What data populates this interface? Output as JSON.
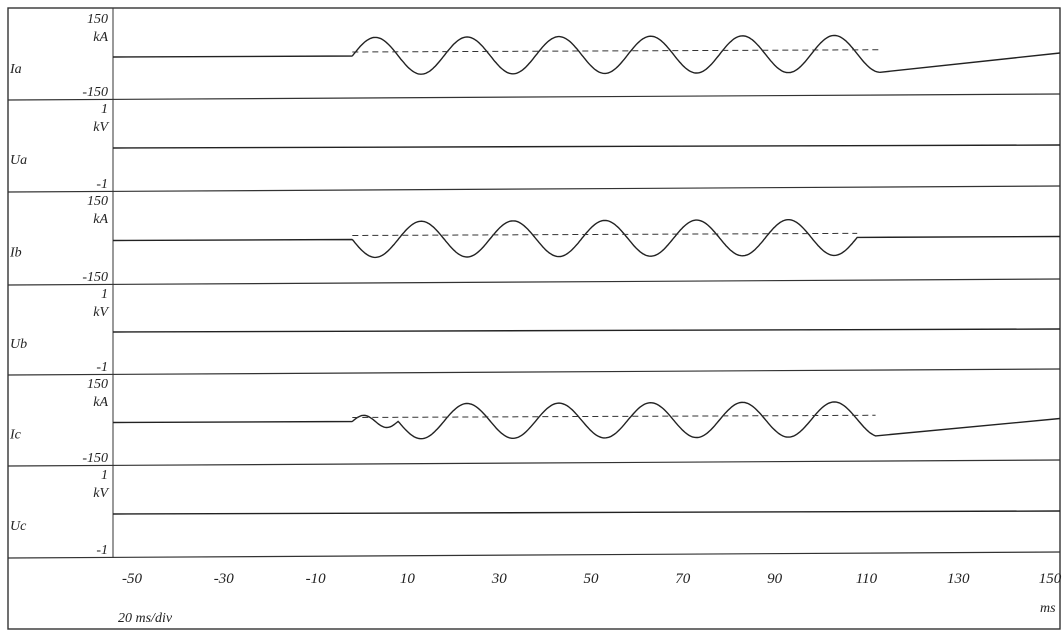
{
  "chart_data": {
    "type": "line",
    "title": "",
    "time_unit": "ms",
    "time_scale": "20 ms/div",
    "x_ticks": [
      "-50",
      "-30",
      "-10",
      "10",
      "30",
      "50",
      "70",
      "90",
      "110",
      "130",
      "150"
    ],
    "xlim": [
      -50,
      150
    ],
    "grid": false,
    "channels": [
      {
        "name": "Ia",
        "unit": "kA",
        "max_label": "150",
        "min_label": "-150",
        "range": [
          -150,
          150
        ],
        "waveform": {
          "start_ms": -2,
          "end_ms": 113,
          "amplitude_kA": 75,
          "period_ms": 20,
          "initial_direction": "up"
        }
      },
      {
        "name": "Ua",
        "unit": "kV",
        "max_label": "1",
        "min_label": "-1",
        "range": [
          -1,
          1
        ],
        "waveform": null
      },
      {
        "name": "Ib",
        "unit": "kA",
        "max_label": "150",
        "min_label": "-150",
        "range": [
          -150,
          150
        ],
        "waveform": {
          "start_ms": -2,
          "end_ms": 108,
          "amplitude_kA": 70,
          "period_ms": 20,
          "initial_direction": "down"
        }
      },
      {
        "name": "Ub",
        "unit": "kV",
        "max_label": "1",
        "min_label": "-1",
        "range": [
          -1,
          1
        ],
        "waveform": null
      },
      {
        "name": "Ic",
        "unit": "kA",
        "max_label": "150",
        "min_label": "-150",
        "range": [
          -150,
          150
        ],
        "waveform": {
          "start_ms": -2,
          "end_ms": 112,
          "amplitude_kA": 70,
          "period_ms": 20,
          "initial_direction": "down",
          "small_initial_bump": true
        }
      },
      {
        "name": "Uc",
        "unit": "kV",
        "max_label": "1",
        "min_label": "-1",
        "range": [
          -1,
          1
        ],
        "waveform": null
      }
    ]
  }
}
